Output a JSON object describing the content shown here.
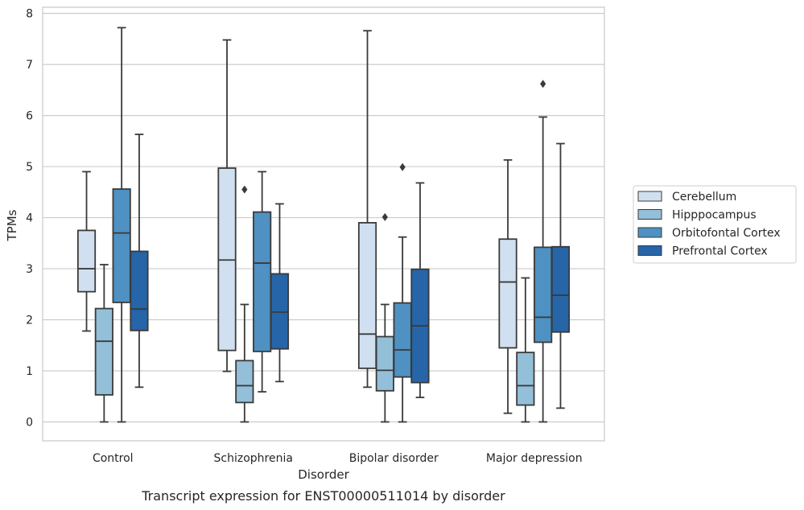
{
  "caption": "Transcript expression for ENST00000511014 by disorder",
  "chart_data": {
    "type": "box",
    "xlabel": "Disorder",
    "ylabel": "TPMs",
    "ylim": [
      -0.37,
      8.12
    ],
    "yticks": [
      0,
      1,
      2,
      3,
      4,
      5,
      6,
      7,
      8
    ],
    "grid": "horizontal",
    "legend_position": "right",
    "categories": [
      "Control",
      "Schizophrenia",
      "Bipolar disorder",
      "Major depression"
    ],
    "series": [
      {
        "name": "Cerebellum",
        "color": "#d1e0f0",
        "boxes": [
          {
            "whislo": 1.78,
            "q1": 2.55,
            "med": 3.0,
            "q3": 3.75,
            "whishi": 4.9,
            "fliers": []
          },
          {
            "whislo": 0.99,
            "q1": 1.4,
            "med": 3.17,
            "q3": 4.97,
            "whishi": 7.48,
            "fliers": []
          },
          {
            "whislo": 0.68,
            "q1": 1.05,
            "med": 1.72,
            "q3": 3.9,
            "whishi": 7.66,
            "fliers": []
          },
          {
            "whislo": 0.17,
            "q1": 1.45,
            "med": 2.74,
            "q3": 3.58,
            "whishi": 5.13,
            "fliers": []
          }
        ]
      },
      {
        "name": "Hipppocampus",
        "color": "#94bfd9",
        "boxes": [
          {
            "whislo": 0.0,
            "q1": 0.53,
            "med": 1.58,
            "q3": 2.22,
            "whishi": 3.08,
            "fliers": []
          },
          {
            "whislo": 0.0,
            "q1": 0.38,
            "med": 0.71,
            "q3": 1.2,
            "whishi": 2.3,
            "fliers": [
              4.55
            ]
          },
          {
            "whislo": 0.0,
            "q1": 0.61,
            "med": 1.01,
            "q3": 1.67,
            "whishi": 2.3,
            "fliers": [
              4.01
            ]
          },
          {
            "whislo": 0.0,
            "q1": 0.33,
            "med": 0.71,
            "q3": 1.36,
            "whishi": 2.82,
            "fliers": []
          }
        ]
      },
      {
        "name": "Orbitofontal Cortex",
        "color": "#4e91c2",
        "boxes": [
          {
            "whislo": 0.0,
            "q1": 2.34,
            "med": 3.7,
            "q3": 4.56,
            "whishi": 7.72,
            "fliers": []
          },
          {
            "whislo": 0.59,
            "q1": 1.38,
            "med": 3.11,
            "q3": 4.11,
            "whishi": 4.9,
            "fliers": []
          },
          {
            "whislo": 0.0,
            "q1": 0.88,
            "med": 1.41,
            "q3": 2.33,
            "whishi": 3.62,
            "fliers": [
              4.99
            ]
          },
          {
            "whislo": 0.0,
            "q1": 1.56,
            "med": 2.05,
            "q3": 3.42,
            "whishi": 5.97,
            "fliers": [
              6.62
            ]
          }
        ]
      },
      {
        "name": "Prefrontal Cortex",
        "color": "#2565a8",
        "boxes": [
          {
            "whislo": 0.68,
            "q1": 1.79,
            "med": 2.21,
            "q3": 3.34,
            "whishi": 5.63,
            "fliers": []
          },
          {
            "whislo": 0.79,
            "q1": 1.43,
            "med": 2.15,
            "q3": 2.9,
            "whishi": 4.27,
            "fliers": []
          },
          {
            "whislo": 0.48,
            "q1": 0.77,
            "med": 1.88,
            "q3": 2.99,
            "whishi": 4.68,
            "fliers": []
          },
          {
            "whislo": 0.27,
            "q1": 1.76,
            "med": 2.48,
            "q3": 3.43,
            "whishi": 5.45,
            "fliers": []
          }
        ]
      }
    ]
  }
}
